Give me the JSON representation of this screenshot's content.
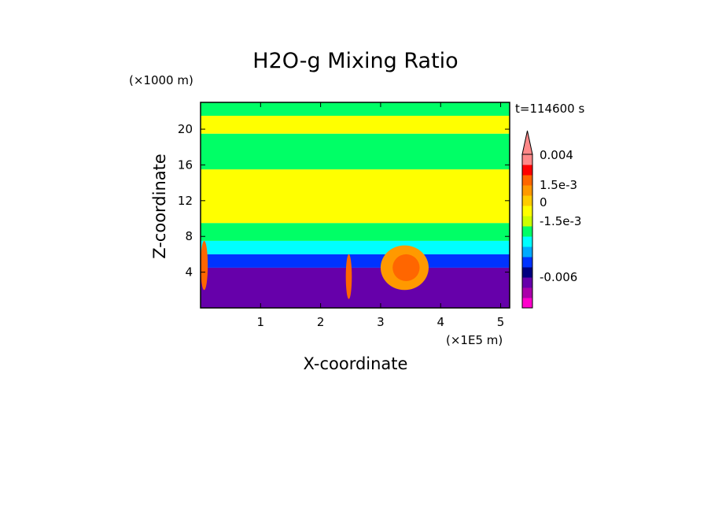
{
  "chart_data": {
    "type": "heatmap",
    "title": "H2O-g Mixing Ratio",
    "xlabel": "X-coordinate",
    "ylabel": "Z-coordinate",
    "x_scale_label": "(×1E5 m)",
    "y_scale_label": "(×1000 m)",
    "time_label": "t=114600 s",
    "xlim": [
      0,
      5.15
    ],
    "ylim": [
      0,
      23
    ],
    "x_ticks": [
      1,
      2,
      3,
      4,
      5
    ],
    "y_ticks": [
      4,
      8,
      12,
      16,
      20
    ],
    "x_tick_labels": [
      "1",
      "2",
      "3",
      "4",
      "5"
    ],
    "y_tick_labels": [
      "4",
      "8",
      "12",
      "16",
      "20"
    ],
    "colorbar": {
      "levels": [
        {
          "color": "#ff00cc"
        },
        {
          "color": "#aa00aa"
        },
        {
          "color": "#6600aa"
        },
        {
          "color": "#000080"
        },
        {
          "color": "#0033ff"
        },
        {
          "color": "#00aaff"
        },
        {
          "color": "#00ffff"
        },
        {
          "color": "#00ff66"
        },
        {
          "color": "#ccff00"
        },
        {
          "color": "#ffff00"
        },
        {
          "color": "#ffcc00"
        },
        {
          "color": "#ff9900"
        },
        {
          "color": "#ff6600"
        },
        {
          "color": "#ff0000"
        },
        {
          "color": "#ff8888"
        }
      ],
      "tick_labels": [
        "0.004",
        "1.5e-3",
        "0",
        "-1.5e-3",
        "-0.006"
      ]
    },
    "regions": [
      {
        "name": "dry-base",
        "color": "#6600aa",
        "x": [
          0,
          5.15
        ],
        "y": [
          0,
          4.5
        ]
      },
      {
        "name": "blue-band",
        "color": "#0033ff",
        "x": [
          0,
          5.15
        ],
        "y": [
          4.5,
          6.0
        ]
      },
      {
        "name": "cyan-band",
        "color": "#00ffff",
        "x": [
          0,
          5.15
        ],
        "y": [
          6.0,
          7.5
        ]
      },
      {
        "name": "green-band",
        "color": "#00ff66",
        "x": [
          0,
          5.15
        ],
        "y": [
          7.5,
          9.5
        ]
      },
      {
        "name": "yellow-mid",
        "color": "#ffff00",
        "x": [
          0,
          5.15
        ],
        "y": [
          9.5,
          15.5
        ]
      },
      {
        "name": "green-upper",
        "color": "#00ff66",
        "x": [
          0,
          5.15
        ],
        "y": [
          15.5,
          19.5
        ]
      },
      {
        "name": "yellow-upper",
        "color": "#ffff00",
        "x": [
          0,
          5.15
        ],
        "y": [
          19.5,
          21.5
        ]
      },
      {
        "name": "green-top",
        "color": "#00ff66",
        "x": [
          0,
          5.15
        ],
        "y": [
          21.5,
          23
        ]
      },
      {
        "name": "moist-plume-left",
        "color": "#ff6600",
        "x": [
          0,
          0.12
        ],
        "y": [
          2,
          7.5
        ]
      },
      {
        "name": "moist-plume-2.5",
        "color": "#ff6600",
        "x": [
          2.42,
          2.52
        ],
        "y": [
          1,
          6
        ]
      },
      {
        "name": "moist-plume-3.4",
        "color": "#ff9900",
        "x": [
          3.0,
          3.8
        ],
        "y": [
          2,
          7
        ]
      },
      {
        "name": "moist-core-3.4",
        "color": "#ff6600",
        "x": [
          3.2,
          3.65
        ],
        "y": [
          3,
          6
        ]
      }
    ]
  }
}
